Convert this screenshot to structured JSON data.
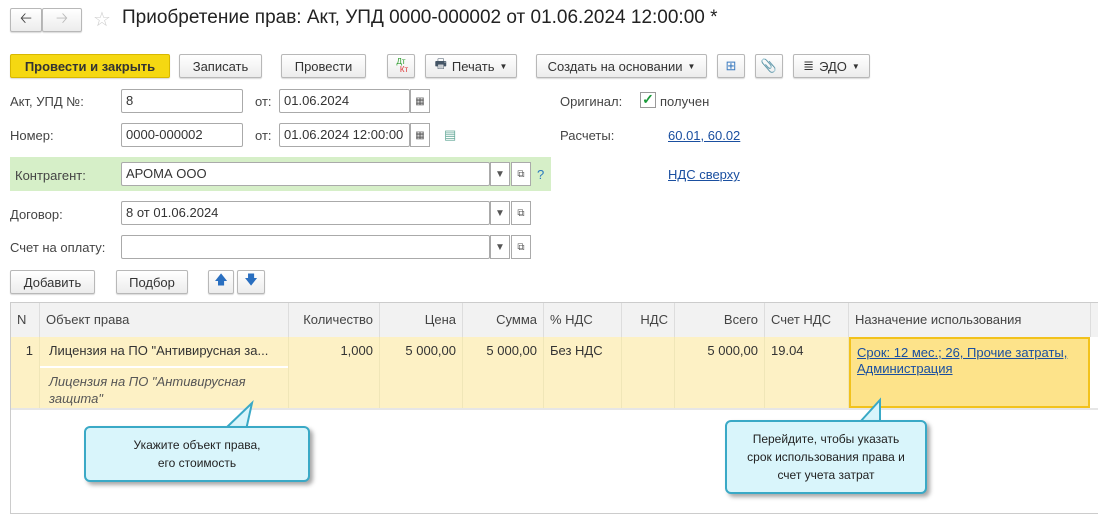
{
  "header": {
    "title": "Приобретение прав: Акт, УПД 0000-000002 от 01.06.2024 12:00:00 *",
    "back_icon": "arrow-left",
    "forward_icon": "arrow-right",
    "star_icon": "star"
  },
  "toolbar": {
    "post_close": "Провести и закрыть",
    "save": "Записать",
    "post": "Провести",
    "dtkt_top": "Дт",
    "dtkt_bottom": "Кт",
    "print": "Печать",
    "create_based": "Создать на основании",
    "edo": "ЭДО"
  },
  "form": {
    "act_label": "Акт, УПД №:",
    "act_value": "8",
    "from_label": "от:",
    "act_date": "01.06.2024",
    "number_label": "Номер:",
    "number_value": "0000-000002",
    "number_date": "01.06.2024 12:00:00",
    "contractor_label": "Контрагент:",
    "contractor_value": "АРОМА ООО",
    "help": "?",
    "contract_label": "Договор:",
    "contract_value": "8 от 01.06.2024",
    "invoice_label": "Счет на оплату:",
    "invoice_value": "",
    "original_label": "Оригинал:",
    "original_checkbox": "получен",
    "original_checked": true,
    "settlements_label": "Расчеты:",
    "settlements_link": "60.01, 60.02",
    "vat_link": "НДС сверху"
  },
  "table_toolbar": {
    "add": "Добавить",
    "select": "Подбор"
  },
  "table": {
    "columns": [
      "N",
      "Объект права",
      "Количество",
      "Цена",
      "Сумма",
      "% НДС",
      "НДС",
      "Всего",
      "Счет НДС",
      "Назначение использования"
    ],
    "rows": [
      {
        "n": "1",
        "object": "Лицензия на ПО \"Антивирусная за...",
        "object_desc_1": "Лицензия на ПО \"Антивирусная",
        "object_desc_2": "защита\"",
        "qty": "1,000",
        "price": "5 000,00",
        "sum": "5 000,00",
        "vat_rate": "Без НДС",
        "vat": "",
        "total": "5 000,00",
        "vat_account": "19.04",
        "purpose_1": "Срок: 12 мес.; 26, Прочие затраты,",
        "purpose_2": "Администрация"
      }
    ]
  },
  "callouts": {
    "left_1": "Укажите объект права,",
    "left_2": "его стоимость",
    "right_1": "Перейдите, чтобы указать",
    "right_2": "срок использования права и",
    "right_3": "счет учета затрат"
  },
  "colors": {
    "primary_button": "#f5d812",
    "contractor_bg": "#d6efc8",
    "row_bg": "#fdf1c5",
    "selected_cell": "#fde38a",
    "callout_bg": "#d9f5fb"
  }
}
